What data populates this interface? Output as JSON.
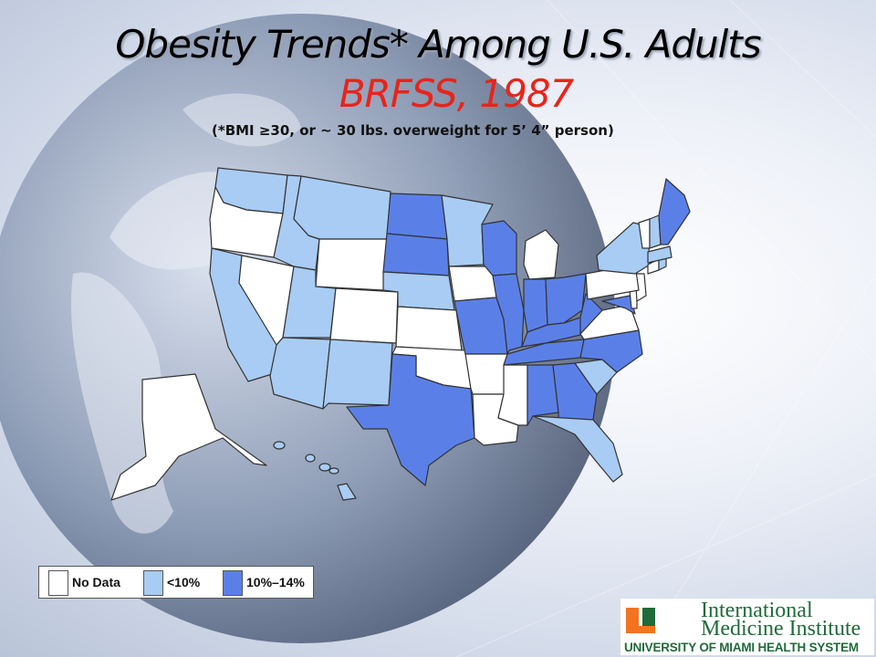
{
  "slide": {
    "title": "Obesity Trends* Among U.S. Adults",
    "subtitle_line": "BRFSS, 1987",
    "footnote": "(*BMI ≥30, or ~ 30 lbs. overweight for 5’ 4” person)"
  },
  "legend": {
    "items": [
      {
        "label": "No Data",
        "color": "#ffffff"
      },
      {
        "label": "<10%",
        "color": "#a8ccf4"
      },
      {
        "label": "10%–14%",
        "color": "#5a80e8"
      }
    ]
  },
  "map_data": {
    "year": 1987,
    "categories": [
      "No Data",
      "<10%",
      "10%–14%"
    ],
    "states": {
      "WA": "<10%",
      "OR": "No Data",
      "CA": "<10%",
      "NV": "No Data",
      "ID": "<10%",
      "MT": "<10%",
      "WY": "No Data",
      "UT": "<10%",
      "AZ": "<10%",
      "NM": "<10%",
      "CO": "No Data",
      "ND": "10%–14%",
      "SD": "10%–14%",
      "NE": "<10%",
      "KS": "No Data",
      "OK": "No Data",
      "TX": "10%–14%",
      "MN": "<10%",
      "IA": "No Data",
      "MO": "10%–14%",
      "AR": "No Data",
      "LA": "No Data",
      "WI": "10%–14%",
      "IL": "10%–14%",
      "MI": "No Data",
      "IN": "10%–14%",
      "OH": "10%–14%",
      "KY": "10%–14%",
      "TN": "10%–14%",
      "MS": "No Data",
      "AL": "10%–14%",
      "GA": "10%–14%",
      "FL": "<10%",
      "SC": "<10%",
      "NC": "10%–14%",
      "VA": "No Data",
      "WV": "10%–14%",
      "MD": "10%–14%",
      "DE": "No Data",
      "NJ": "No Data",
      "PA": "No Data",
      "NY": "<10%",
      "CT": "No Data",
      "RI": "<10%",
      "MA": "<10%",
      "VT": "No Data",
      "NH": "<10%",
      "ME": "10%–14%",
      "AK": "No Data",
      "HI": "<10%"
    }
  },
  "logo": {
    "line1": "International",
    "line2": "Medicine Institute",
    "line3": "UNIVERSITY OF MIAMI HEALTH SYSTEM",
    "brand_green": "#1f6b3a",
    "brand_orange": "#f47321"
  }
}
